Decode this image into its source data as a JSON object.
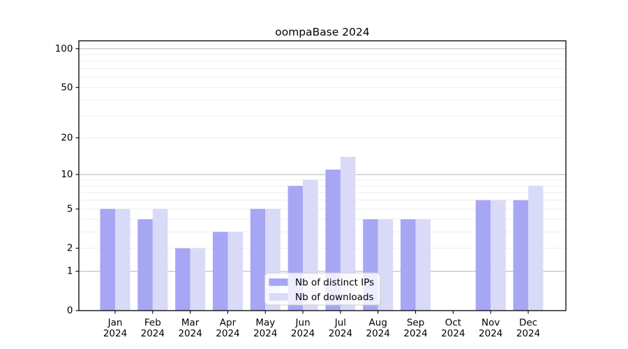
{
  "chart_data": {
    "type": "bar",
    "title": "oompaBase 2024",
    "categories": [
      "Jan",
      "Feb",
      "Mar",
      "Apr",
      "May",
      "Jun",
      "Jul",
      "Aug",
      "Sep",
      "Oct",
      "Nov",
      "Dec"
    ],
    "category_year": "2024",
    "series": [
      {
        "name": "Nb of distinct IPs",
        "color": "#a6a6f4",
        "values": [
          5,
          4,
          2,
          3,
          5,
          8,
          11,
          4,
          4,
          0,
          6,
          6
        ]
      },
      {
        "name": "Nb of downloads",
        "color": "#d9d9f8",
        "values": [
          5,
          5,
          2,
          3,
          5,
          9,
          14,
          4,
          4,
          0,
          6,
          8
        ]
      }
    ],
    "xlabel": "",
    "ylabel": "",
    "yscale": "log1p",
    "ylim": [
      0,
      115
    ],
    "yticks": [
      0,
      1,
      2,
      5,
      10,
      20,
      50,
      100
    ],
    "ytick_labels": [
      "0",
      "1",
      "2",
      "5",
      "10",
      "20",
      "50",
      "100"
    ],
    "major_gridlines": [
      1,
      10,
      100
    ],
    "minor_gridlines": [
      2,
      3,
      4,
      5,
      6,
      7,
      8,
      9,
      20,
      30,
      40,
      50,
      60,
      70,
      80,
      90
    ],
    "grid": "horizontal",
    "legend_position": "lower center"
  },
  "colors": {
    "series_ips": "#a6a6f4",
    "series_downloads": "#d9d9f8",
    "major_grid": "#b9b9b9",
    "minor_grid": "#ededed",
    "spine": "#000000",
    "legend_border": "#cccccc"
  }
}
